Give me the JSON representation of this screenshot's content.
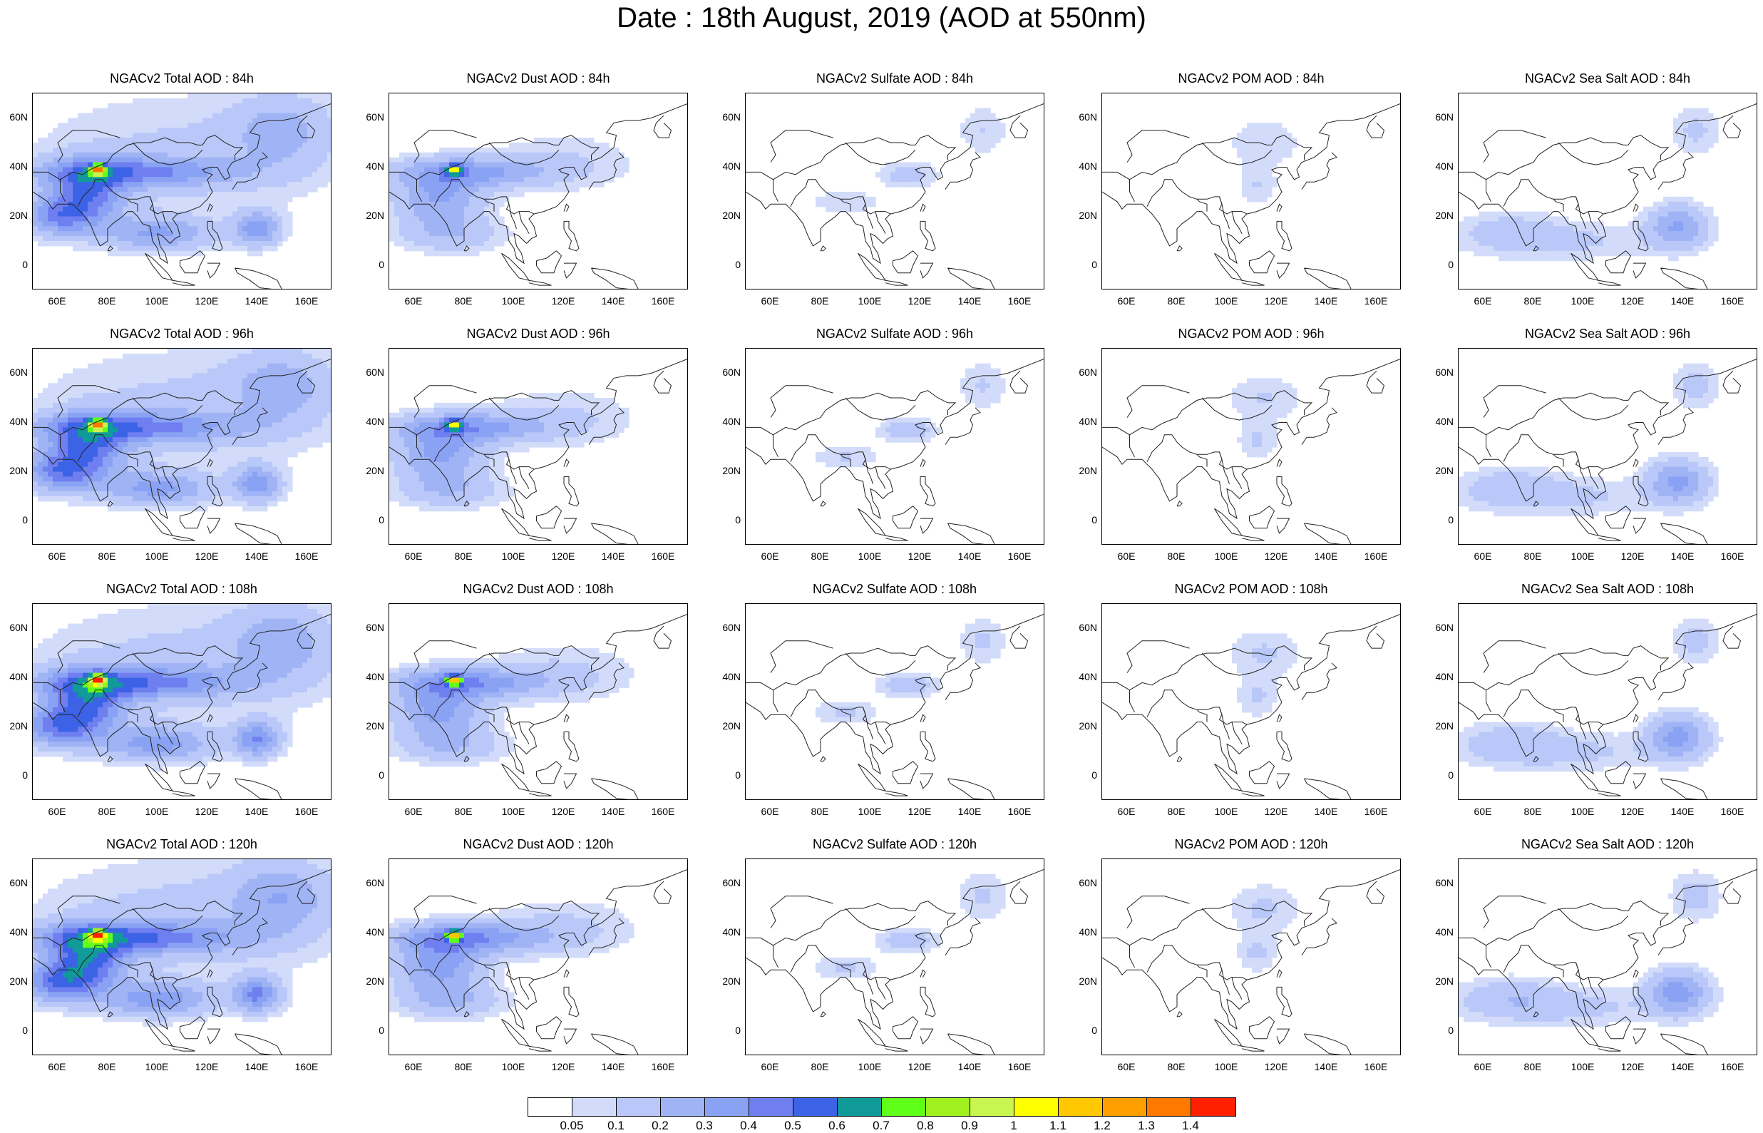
{
  "title": "Date : 18th August, 2019 (AOD at 550nm)",
  "panel_titles": [
    [
      "NGACv2 Total AOD : 84h",
      "NGACv2 Dust AOD : 84h",
      "NGACv2 Sulfate AOD : 84h",
      "NGACv2 POM AOD : 84h",
      "NGACv2 Sea Salt AOD : 84h"
    ],
    [
      "NGACv2 Total AOD : 96h",
      "NGACv2 Dust AOD : 96h",
      "NGACv2 Sulfate AOD : 96h",
      "NGACv2 POM AOD : 96h",
      "NGACv2 Sea Salt AOD : 96h"
    ],
    [
      "NGACv2 Total AOD : 108h",
      "NGACv2 Dust AOD : 108h",
      "NGACv2 Sulfate AOD : 108h",
      "NGACv2 POM AOD : 108h",
      "NGACv2 Sea Salt AOD : 108h"
    ],
    [
      "NGACv2 Total AOD : 120h",
      "NGACv2 Dust AOD : 120h",
      "NGACv2 Sulfate AOD : 120h",
      "NGACv2 POM AOD : 120h",
      "NGACv2 Sea Salt  AOD : 120h"
    ]
  ],
  "lat_ticks": [
    "60N",
    "40N",
    "20N",
    "0"
  ],
  "lon_ticks": [
    "60E",
    "80E",
    "100E",
    "120E",
    "140E",
    "160E"
  ],
  "map_extent": {
    "lon": [
      50,
      170
    ],
    "lat": [
      -10,
      70
    ]
  },
  "colorbar": {
    "labels": [
      "0.05",
      "0.1",
      "0.2",
      "0.3",
      "0.4",
      "0.5",
      "0.6",
      "0.7",
      "0.8",
      "0.9",
      "1",
      "1.1",
      "1.2",
      "1.3",
      "1.4"
    ],
    "colors": [
      "#ffffff",
      "#d2dcfa",
      "#b9c8f8",
      "#a0b4f5",
      "#8aa2f4",
      "#6f7ff0",
      "#3c63e6",
      "#109a98",
      "#60ff1a",
      "#a0f020",
      "#c8f550",
      "#ffff00",
      "#ffc800",
      "#ffa000",
      "#ff7800",
      "#ff2000"
    ]
  },
  "chart_data": {
    "type": "heatmap",
    "title": "Date : 18th August, 2019 (AOD at 550nm)",
    "variables": [
      "Total",
      "Dust",
      "Sulfate",
      "POM",
      "Sea Salt"
    ],
    "forecast_hours": [
      "84h",
      "96h",
      "108h",
      "120h"
    ],
    "lon_range": [
      50,
      170
    ],
    "lat_range": [
      -10,
      70
    ],
    "levels": [
      0.05,
      0.1,
      0.2,
      0.3,
      0.4,
      0.5,
      0.6,
      0.7,
      0.8,
      0.9,
      1,
      1.1,
      1.2,
      1.3,
      1.4
    ],
    "blobs": {
      "Total": [
        {
          "lon": 90,
          "lat": 38,
          "rlon": 40,
          "rlat": 6,
          "v": 0.35
        },
        {
          "lon": 76,
          "lat": 39,
          "rlon": 3,
          "rlat": 2,
          "v": 0.8
        },
        {
          "lon": 72,
          "lat": 30,
          "rlon": 15,
          "rlat": 12,
          "v": 0.4
        },
        {
          "lon": 60,
          "lat": 20,
          "rlon": 15,
          "rlat": 8,
          "v": 0.35
        },
        {
          "lon": 100,
          "lat": 13,
          "rlon": 22,
          "rlat": 7,
          "v": 0.3
        },
        {
          "lon": 140,
          "lat": 15,
          "rlon": 9,
          "rlat": 7,
          "v": 0.35
        },
        {
          "lon": 110,
          "lat": 45,
          "rlon": 60,
          "rlat": 25,
          "v": 0.12
        },
        {
          "lon": 150,
          "lat": 55,
          "rlon": 20,
          "rlat": 15,
          "v": 0.2
        }
      ],
      "Dust": [
        {
          "lon": 82,
          "lat": 38,
          "rlon": 30,
          "rlat": 6,
          "v": 0.3
        },
        {
          "lon": 76,
          "lat": 39,
          "rlon": 3,
          "rlat": 2,
          "v": 0.7
        },
        {
          "lon": 70,
          "lat": 27,
          "rlon": 18,
          "rlat": 12,
          "v": 0.3
        },
        {
          "lon": 75,
          "lat": 12,
          "rlon": 22,
          "rlat": 7,
          "v": 0.15
        },
        {
          "lon": 120,
          "lat": 42,
          "rlon": 30,
          "rlat": 12,
          "v": 0.1
        }
      ],
      "Sulfate": [
        {
          "lon": 115,
          "lat": 37,
          "rlon": 12,
          "rlat": 5,
          "v": 0.15
        },
        {
          "lon": 90,
          "lat": 26,
          "rlon": 14,
          "rlat": 5,
          "v": 0.1
        },
        {
          "lon": 145,
          "lat": 55,
          "rlon": 10,
          "rlat": 10,
          "v": 0.1
        }
      ],
      "POM": [
        {
          "lon": 115,
          "lat": 50,
          "rlon": 15,
          "rlat": 10,
          "v": 0.1
        },
        {
          "lon": 112,
          "lat": 32,
          "rlon": 8,
          "rlat": 8,
          "v": 0.1
        }
      ],
      "Sea Salt": [
        {
          "lon": 138,
          "lat": 16,
          "rlon": 12,
          "rlat": 9,
          "v": 0.3
        },
        {
          "lon": 90,
          "lat": 10,
          "rlon": 40,
          "rlat": 8,
          "v": 0.12
        },
        {
          "lon": 145,
          "lat": 55,
          "rlon": 10,
          "rlat": 10,
          "v": 0.12
        },
        {
          "lon": 70,
          "lat": 15,
          "rlon": 20,
          "rlat": 8,
          "v": 0.1
        }
      ]
    }
  }
}
